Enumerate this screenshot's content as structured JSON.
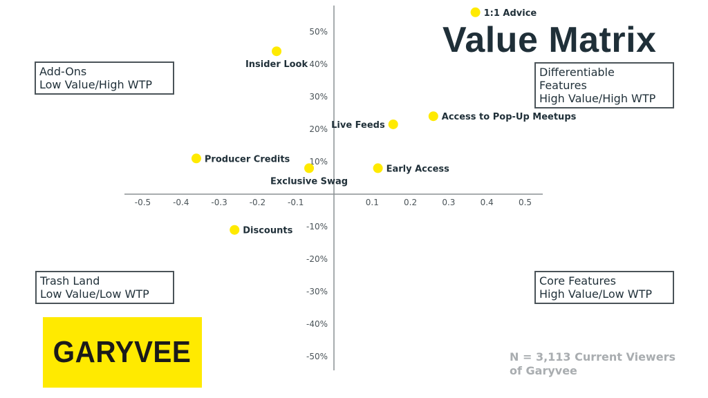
{
  "title": "Value Matrix",
  "quadrants": {
    "top_left": [
      "Add-Ons",
      "Low Value/High WTP"
    ],
    "top_right": [
      "Differentiable",
      "Features",
      "High Value/High WTP"
    ],
    "bottom_left": [
      "Trash Land",
      "Low Value/Low WTP"
    ],
    "bottom_right": [
      "Core Features",
      "High Value/Low WTP"
    ]
  },
  "logo_text": "GARYVEE",
  "footnote": [
    "N = 3,113 Current Viewers",
    "of Garyvee"
  ],
  "colors": {
    "point": "#ffea00",
    "title": "#1f2f38",
    "axis": "#8a9094",
    "footnote": "#a9adb0",
    "logo_bg": "#ffea00"
  },
  "chart_data": {
    "type": "scatter",
    "xlim": [
      -0.52,
      0.52
    ],
    "ylim": [
      -0.52,
      0.58
    ],
    "x_ticks": [
      -0.5,
      -0.4,
      -0.3,
      -0.2,
      -0.1,
      0.1,
      0.2,
      0.3,
      0.4,
      0.5
    ],
    "x_tick_labels": [
      "-0.5",
      "-0.4",
      "-0.3",
      "-0.2",
      "-0.1",
      "0.1",
      "0.2",
      "0.3",
      "0.4",
      "0.5"
    ],
    "y_ticks": [
      0.5,
      0.4,
      0.3,
      0.2,
      0.1,
      -0.1,
      -0.2,
      -0.3,
      -0.4,
      -0.5
    ],
    "y_tick_labels": [
      "50%",
      "40%",
      "30%",
      "20%",
      "10%",
      "-10%",
      "-20%",
      "-30%",
      "-40%",
      "-50%"
    ],
    "grid": false,
    "points": [
      {
        "label": "1:1 Advice",
        "x": 0.37,
        "y": 0.56,
        "label_side": "right"
      },
      {
        "label": "Insider Look",
        "x": -0.15,
        "y": 0.44,
        "label_side": "below"
      },
      {
        "label": "Access to Pop-Up Meetups",
        "x": 0.26,
        "y": 0.24,
        "label_side": "right"
      },
      {
        "label": "Live Feeds",
        "x": 0.155,
        "y": 0.215,
        "label_side": "left"
      },
      {
        "label": "Producer Credits",
        "x": -0.36,
        "y": 0.11,
        "label_side": "right"
      },
      {
        "label": "Exclusive Swag",
        "x": -0.065,
        "y": 0.08,
        "label_side": "below"
      },
      {
        "label": "Early Access",
        "x": 0.115,
        "y": 0.08,
        "label_side": "right"
      },
      {
        "label": "Discounts",
        "x": -0.26,
        "y": -0.11,
        "label_side": "right"
      }
    ]
  }
}
